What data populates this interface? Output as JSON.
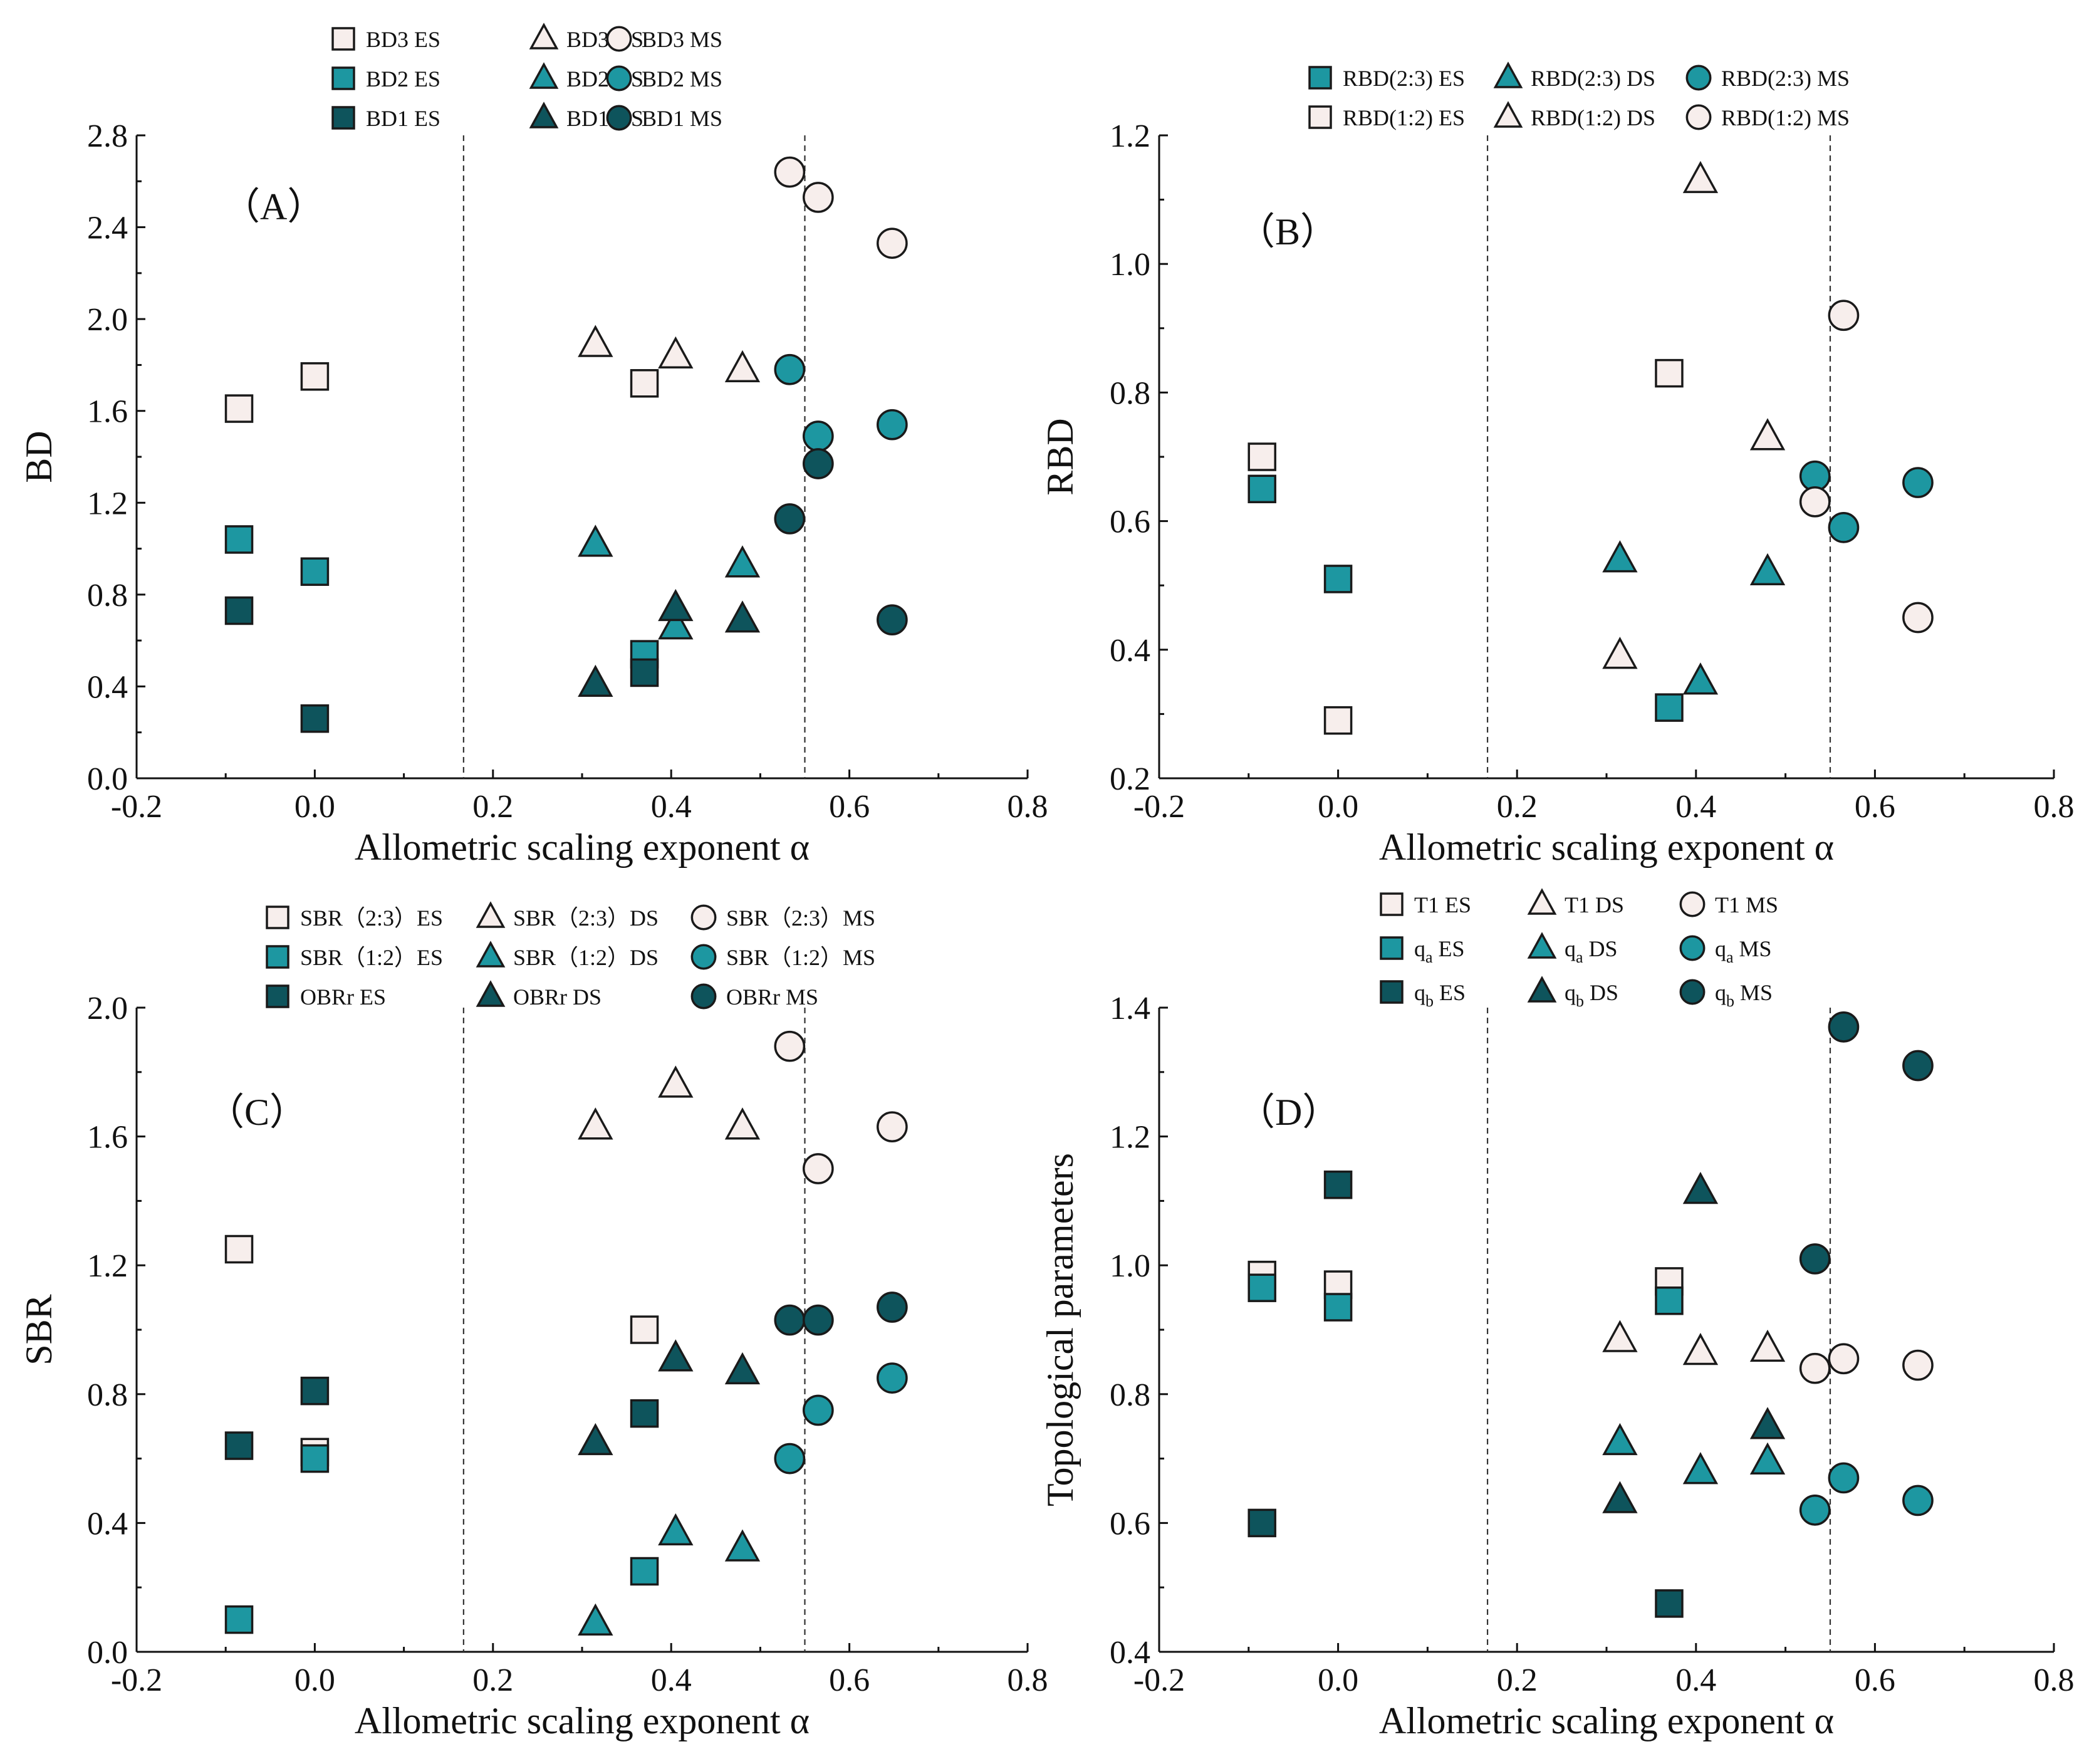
{
  "colors": {
    "light": "#F7EEEC",
    "mid": "#1D97A1",
    "dark": "#0E545C",
    "stroke": "#1A1A1A"
  },
  "reference_lines_x": [
    0.167,
    0.55
  ],
  "chart_data": [
    {
      "id": "A",
      "type": "scatter",
      "panel_label": "（A）",
      "xlabel": "Allometric scaling exponent α",
      "ylabel": "BD",
      "xlim": [
        -0.2,
        0.8
      ],
      "ylim": [
        0.0,
        2.8
      ],
      "xticks": [
        "-0.2",
        "0.0",
        "0.2",
        "0.4",
        "0.6",
        "0.8"
      ],
      "yticks": [
        "0.0",
        "0.4",
        "0.8",
        "1.2",
        "1.6",
        "2.0",
        "2.4",
        "2.8"
      ],
      "legend_position": "top",
      "legend_columns": 3,
      "series": [
        {
          "name": "BD3 ES",
          "marker": "square",
          "color": "light",
          "points": [
            [
              -0.085,
              1.61
            ],
            [
              0.0,
              1.75
            ],
            [
              0.37,
              1.72
            ]
          ]
        },
        {
          "name": "BD3 DS",
          "marker": "triangle",
          "color": "light",
          "points": [
            [
              0.315,
              1.89
            ],
            [
              0.405,
              1.84
            ],
            [
              0.48,
              1.78
            ]
          ]
        },
        {
          "name": "BD3 MS",
          "marker": "circle",
          "color": "light",
          "points": [
            [
              0.533,
              2.64
            ],
            [
              0.565,
              2.53
            ],
            [
              0.648,
              2.33
            ]
          ]
        },
        {
          "name": "BD2 ES",
          "marker": "square",
          "color": "mid",
          "points": [
            [
              -0.085,
              1.04
            ],
            [
              0.0,
              0.9
            ],
            [
              0.37,
              0.54
            ]
          ]
        },
        {
          "name": "BD2 DS",
          "marker": "triangle",
          "color": "mid",
          "points": [
            [
              0.315,
              1.02
            ],
            [
              0.405,
              0.66
            ],
            [
              0.48,
              0.93
            ]
          ]
        },
        {
          "name": "BD2 MS",
          "marker": "circle",
          "color": "mid",
          "points": [
            [
              0.533,
              1.78
            ],
            [
              0.565,
              1.49
            ],
            [
              0.648,
              1.54
            ]
          ]
        },
        {
          "name": "BD1 ES",
          "marker": "square",
          "color": "dark",
          "points": [
            [
              -0.085,
              0.73
            ],
            [
              0.0,
              0.26
            ],
            [
              0.37,
              0.46
            ]
          ]
        },
        {
          "name": "BD1 DS",
          "marker": "triangle",
          "color": "dark",
          "points": [
            [
              0.315,
              0.41
            ],
            [
              0.405,
              0.74
            ],
            [
              0.48,
              0.69
            ]
          ]
        },
        {
          "name": "BD1 MS",
          "marker": "circle",
          "color": "dark",
          "points": [
            [
              0.533,
              1.13
            ],
            [
              0.565,
              1.37
            ],
            [
              0.648,
              0.69
            ]
          ]
        }
      ]
    },
    {
      "id": "B",
      "type": "scatter",
      "panel_label": "（B）",
      "xlabel": "Allometric scaling exponent α",
      "ylabel": "RBD",
      "xlim": [
        -0.2,
        0.8
      ],
      "ylim": [
        0.2,
        1.2
      ],
      "xticks": [
        "-0.2",
        "0.0",
        "0.2",
        "0.4",
        "0.6",
        "0.8"
      ],
      "yticks": [
        "0.2",
        "0.4",
        "0.6",
        "0.8",
        "1.0",
        "1.2"
      ],
      "legend_position": "top",
      "legend_columns": 3,
      "series": [
        {
          "name": "RBD(2:3) ES",
          "marker": "square",
          "color": "mid",
          "points": [
            [
              -0.085,
              0.65
            ],
            [
              0.0,
              0.51
            ],
            [
              0.37,
              0.31
            ]
          ]
        },
        {
          "name": "RBD(2:3) DS",
          "marker": "triangle",
          "color": "mid",
          "points": [
            [
              0.315,
              0.54
            ],
            [
              0.405,
              0.35
            ],
            [
              0.48,
              0.52
            ]
          ]
        },
        {
          "name": "RBD(2:3) MS",
          "marker": "circle",
          "color": "mid",
          "points": [
            [
              0.533,
              0.67
            ],
            [
              0.565,
              0.59
            ],
            [
              0.648,
              0.66
            ]
          ]
        },
        {
          "name": "RBD(1:2) ES",
          "marker": "square",
          "color": "light",
          "points": [
            [
              -0.085,
              0.7
            ],
            [
              0.0,
              0.29
            ],
            [
              0.37,
              0.83
            ]
          ]
        },
        {
          "name": "RBD(1:2) DS",
          "marker": "triangle",
          "color": "light",
          "points": [
            [
              0.315,
              0.39
            ],
            [
              0.405,
              1.13
            ],
            [
              0.48,
              0.73
            ]
          ]
        },
        {
          "name": "RBD(1:2) MS",
          "marker": "circle",
          "color": "light",
          "points": [
            [
              0.533,
              0.63
            ],
            [
              0.565,
              0.92
            ],
            [
              0.648,
              0.45
            ]
          ]
        }
      ]
    },
    {
      "id": "C",
      "type": "scatter",
      "panel_label": "（C）",
      "xlabel": "Allometric scaling exponent α",
      "ylabel": "SBR",
      "xlim": [
        -0.2,
        0.8
      ],
      "ylim": [
        0.0,
        2.0
      ],
      "xticks": [
        "-0.2",
        "0.0",
        "0.2",
        "0.4",
        "0.6",
        "0.8"
      ],
      "yticks": [
        "0.0",
        "0.4",
        "0.8",
        "1.2",
        "1.6",
        "2.0"
      ],
      "legend_position": "top",
      "legend_columns": 3,
      "series": [
        {
          "name": "SBR（2:3）ES",
          "marker": "square",
          "color": "light",
          "points": [
            [
              -0.085,
              1.25
            ],
            [
              0.0,
              0.62
            ],
            [
              0.37,
              1.0
            ]
          ]
        },
        {
          "name": "SBR（2:3）DS",
          "marker": "triangle",
          "color": "light",
          "points": [
            [
              0.315,
              1.63
            ],
            [
              0.405,
              1.76
            ],
            [
              0.48,
              1.63
            ]
          ]
        },
        {
          "name": "SBR（2:3）MS",
          "marker": "circle",
          "color": "light",
          "points": [
            [
              0.533,
              1.88
            ],
            [
              0.565,
              1.5
            ],
            [
              0.648,
              1.63
            ]
          ]
        },
        {
          "name": "SBR（1:2）ES",
          "marker": "square",
          "color": "mid",
          "points": [
            [
              -0.085,
              0.1
            ],
            [
              0.0,
              0.6
            ],
            [
              0.37,
              0.25
            ]
          ]
        },
        {
          "name": "SBR（1:2）DS",
          "marker": "triangle",
          "color": "mid",
          "points": [
            [
              0.315,
              0.09
            ],
            [
              0.405,
              0.37
            ],
            [
              0.48,
              0.32
            ]
          ]
        },
        {
          "name": "SBR（1:2）MS",
          "marker": "circle",
          "color": "mid",
          "points": [
            [
              0.533,
              0.6
            ],
            [
              0.565,
              0.75
            ],
            [
              0.648,
              0.85
            ]
          ]
        },
        {
          "name": "OBRr ES",
          "marker": "square",
          "color": "dark",
          "points": [
            [
              -0.085,
              0.64
            ],
            [
              0.0,
              0.81
            ],
            [
              0.37,
              0.74
            ]
          ]
        },
        {
          "name": "OBRr DS",
          "marker": "triangle",
          "color": "dark",
          "points": [
            [
              0.315,
              0.65
            ],
            [
              0.405,
              0.91
            ],
            [
              0.48,
              0.87
            ]
          ]
        },
        {
          "name": "OBRr MS",
          "marker": "circle",
          "color": "dark",
          "points": [
            [
              0.533,
              1.03
            ],
            [
              0.565,
              1.03
            ],
            [
              0.648,
              1.07
            ]
          ]
        }
      ]
    },
    {
      "id": "D",
      "type": "scatter",
      "panel_label": "（D）",
      "xlabel": "Allometric scaling exponent α",
      "ylabel": "Topological parameters",
      "xlim": [
        -0.2,
        0.8
      ],
      "ylim": [
        0.4,
        1.4
      ],
      "xticks": [
        "-0.2",
        "0.0",
        "0.2",
        "0.4",
        "0.6",
        "0.8"
      ],
      "yticks": [
        "0.4",
        "0.6",
        "0.8",
        "1.0",
        "1.2",
        "1.4"
      ],
      "legend_position": "top",
      "legend_columns": 3,
      "series": [
        {
          "name": "T1 ES",
          "name_base": "T1",
          "name_sub": "",
          "name_suffix": "ES",
          "marker": "square",
          "color": "light",
          "points": [
            [
              -0.085,
              0.985
            ],
            [
              0.0,
              0.97
            ],
            [
              0.37,
              0.975
            ]
          ]
        },
        {
          "name": "T1 DS",
          "name_base": "T1",
          "name_sub": "",
          "name_suffix": "DS",
          "marker": "triangle",
          "color": "light",
          "points": [
            [
              0.315,
              0.885
            ],
            [
              0.405,
              0.865
            ],
            [
              0.48,
              0.87
            ]
          ]
        },
        {
          "name": "T1 MS",
          "name_base": "T1",
          "name_sub": "",
          "name_suffix": "MS",
          "marker": "circle",
          "color": "light",
          "points": [
            [
              0.533,
              0.84
            ],
            [
              0.565,
              0.855
            ],
            [
              0.648,
              0.845
            ]
          ]
        },
        {
          "name": "qa ES",
          "name_base": "q",
          "name_sub": "a",
          "name_suffix": "ES",
          "marker": "square",
          "color": "mid",
          "points": [
            [
              -0.085,
              0.965
            ],
            [
              0.0,
              0.935
            ],
            [
              0.37,
              0.945
            ]
          ]
        },
        {
          "name": "qa DS",
          "name_base": "q",
          "name_sub": "a",
          "name_suffix": "DS",
          "marker": "triangle",
          "color": "mid",
          "points": [
            [
              0.315,
              0.725
            ],
            [
              0.405,
              0.68
            ],
            [
              0.48,
              0.695
            ]
          ]
        },
        {
          "name": "qa MS",
          "name_base": "q",
          "name_sub": "a",
          "name_suffix": "MS",
          "marker": "circle",
          "color": "mid",
          "points": [
            [
              0.533,
              0.62
            ],
            [
              0.565,
              0.67
            ],
            [
              0.648,
              0.635
            ]
          ]
        },
        {
          "name": "qb ES",
          "name_base": "q",
          "name_sub": "b",
          "name_suffix": "ES",
          "marker": "square",
          "color": "dark",
          "points": [
            [
              -0.085,
              0.6
            ],
            [
              0.0,
              1.125
            ],
            [
              0.37,
              0.475
            ]
          ]
        },
        {
          "name": "qb DS",
          "name_base": "q",
          "name_sub": "b",
          "name_suffix": "DS",
          "marker": "triangle",
          "color": "dark",
          "points": [
            [
              0.315,
              0.635
            ],
            [
              0.405,
              1.115
            ],
            [
              0.48,
              0.75
            ]
          ]
        },
        {
          "name": "qb MS",
          "name_base": "q",
          "name_sub": "b",
          "name_suffix": "MS",
          "marker": "circle",
          "color": "dark",
          "points": [
            [
              0.533,
              1.01
            ],
            [
              0.565,
              1.37
            ],
            [
              0.648,
              1.31
            ]
          ]
        }
      ]
    }
  ]
}
